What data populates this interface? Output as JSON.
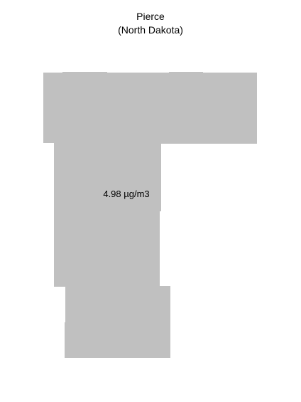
{
  "map": {
    "county": "Pierce",
    "state": "(North Dakota)",
    "value_label": "4.98 µg/m3",
    "fill_color": "#c0c0c0",
    "background_color": "#ffffff"
  }
}
